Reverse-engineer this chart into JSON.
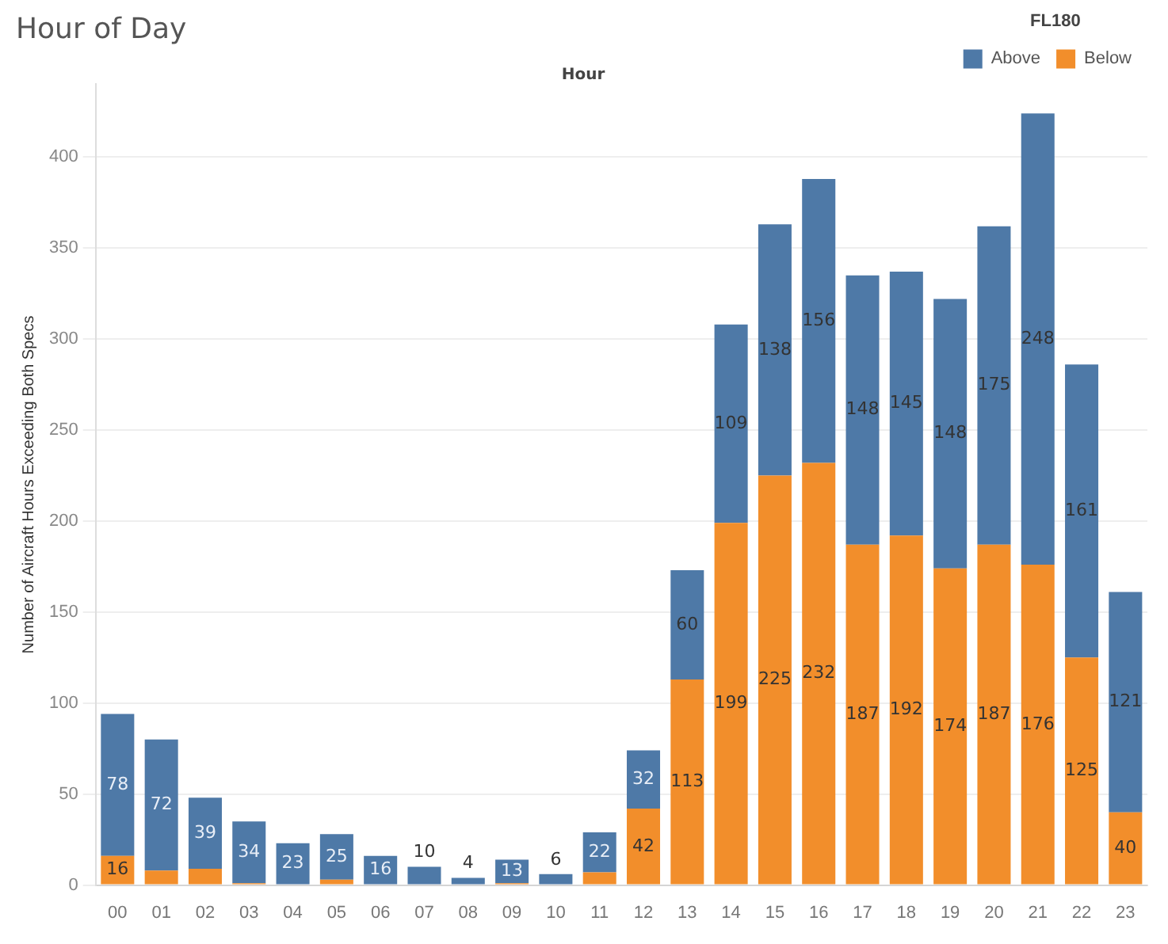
{
  "chart_data": {
    "type": "bar",
    "title": "Hour of Day",
    "xlabel": "Hour",
    "ylabel": "Number of Aircraft Hours Exceeding Both Specs",
    "legend_title": "FL180",
    "categories": [
      "00",
      "01",
      "02",
      "03",
      "04",
      "05",
      "06",
      "07",
      "08",
      "09",
      "10",
      "11",
      "12",
      "13",
      "14",
      "15",
      "16",
      "17",
      "18",
      "19",
      "20",
      "21",
      "22",
      "23"
    ],
    "stacked": true,
    "series": [
      {
        "name": "Below",
        "color": "#f28e2b",
        "values": [
          16,
          8,
          9,
          1,
          0,
          3,
          0,
          0,
          0,
          1,
          0,
          7,
          42,
          113,
          199,
          225,
          232,
          187,
          192,
          174,
          187,
          176,
          125,
          40
        ],
        "value_labels": [
          "16",
          null,
          null,
          null,
          null,
          null,
          null,
          null,
          null,
          null,
          null,
          null,
          "42",
          "113",
          "199",
          "225",
          "232",
          "187",
          "192",
          "174",
          "187",
          "176",
          "125",
          "40"
        ]
      },
      {
        "name": "Above",
        "color": "#4e79a7",
        "values": [
          78,
          72,
          39,
          34,
          23,
          25,
          16,
          10,
          4,
          13,
          6,
          22,
          32,
          60,
          109,
          138,
          156,
          148,
          145,
          148,
          175,
          248,
          161,
          121
        ],
        "value_labels": [
          "78",
          "72",
          "39",
          "34",
          "23",
          "25",
          "16",
          "10",
          "4",
          "13",
          "6",
          "22",
          "32",
          "60",
          "109",
          "138",
          "156",
          "148",
          "145",
          "148",
          "175",
          "248",
          "161",
          "121"
        ]
      }
    ],
    "ylim": [
      0,
      440
    ],
    "yticks": [
      0,
      50,
      100,
      150,
      200,
      250,
      300,
      350,
      400
    ],
    "grid": "y",
    "legend": "top right"
  }
}
